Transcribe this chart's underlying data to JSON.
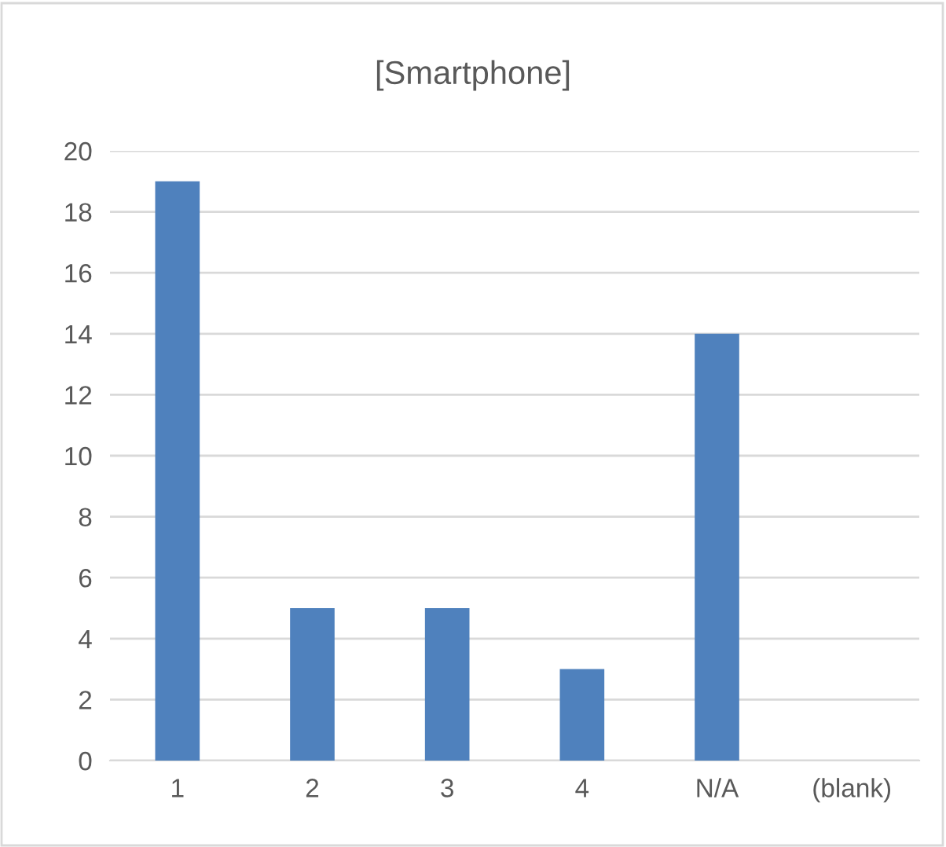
{
  "chart_data": {
    "type": "bar",
    "title": "[Smartphone]",
    "categories": [
      "1",
      "2",
      "3",
      "4",
      "N/A",
      "(blank)"
    ],
    "values": [
      19,
      5,
      5,
      3,
      14,
      null
    ],
    "color": "#4f81bd",
    "ylim": [
      0,
      20
    ],
    "yticks": [
      0,
      2,
      4,
      6,
      8,
      10,
      12,
      14,
      16,
      18,
      20
    ],
    "grid": "y",
    "legend": false
  }
}
